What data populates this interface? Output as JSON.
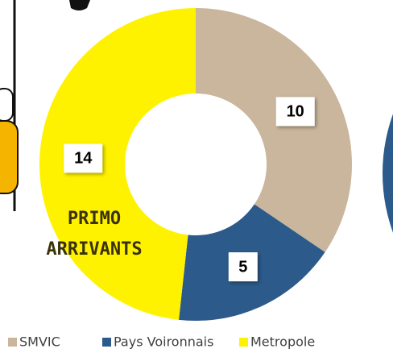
{
  "chart_data": {
    "type": "donut",
    "categories": [
      "SMVIC",
      "Pays Voironnais",
      "Metropole"
    ],
    "values": [
      10,
      5,
      14
    ],
    "colors": [
      "#c9b69c",
      "#2c5a8a",
      "#fff200"
    ],
    "annotation": [
      "PRIMO",
      "ARRIVANTS"
    ]
  }
}
